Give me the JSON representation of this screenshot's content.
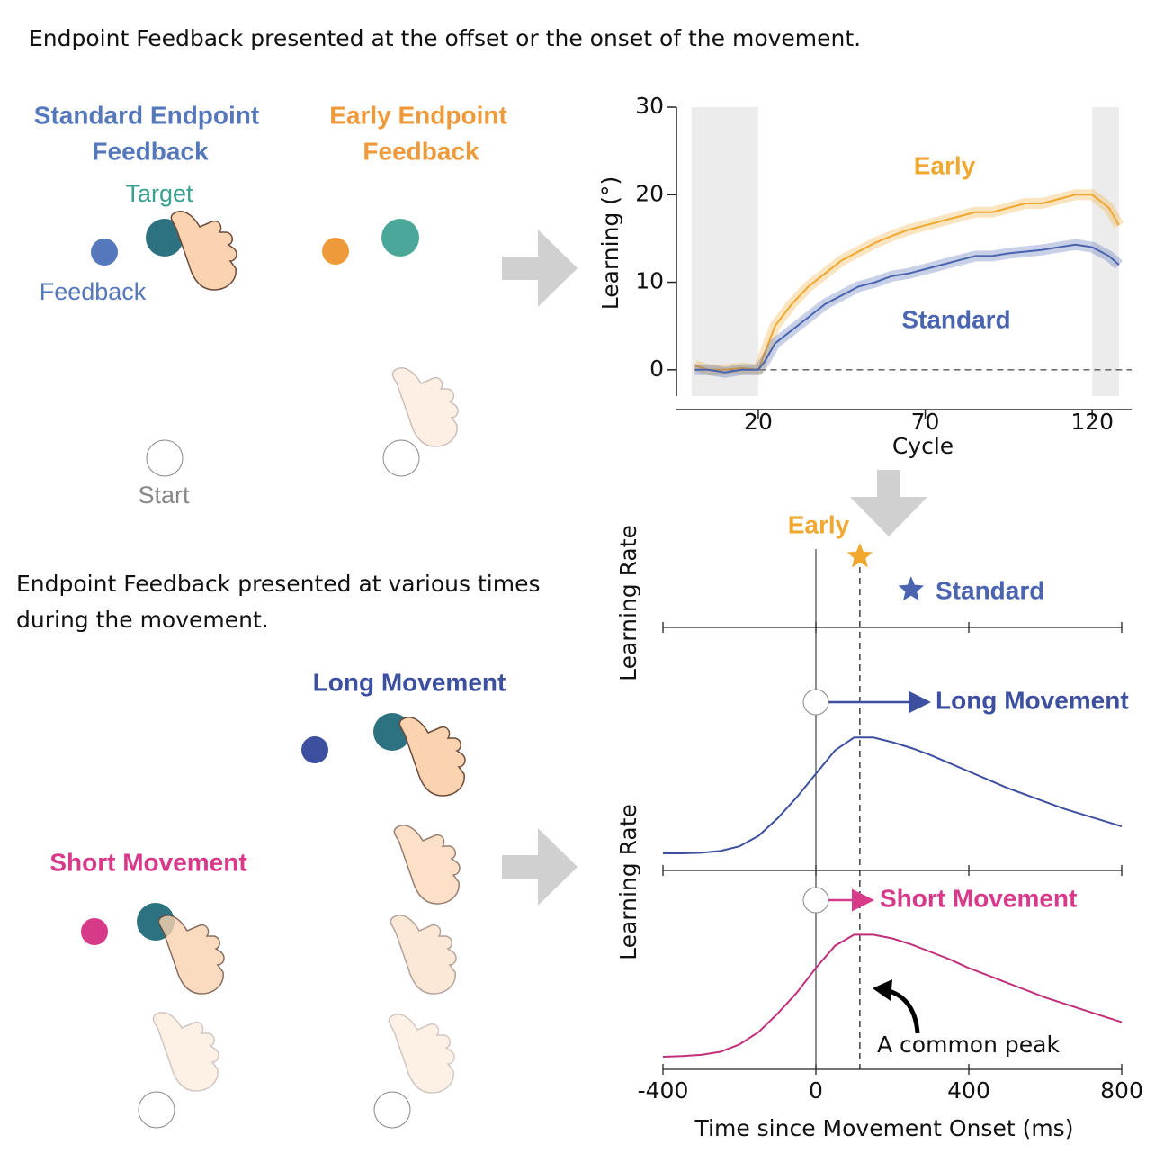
{
  "header": {
    "top_caption": "Endpoint Feedback presented at the offset or the onset of the movement.",
    "bottom_caption": [
      "Endpoint Feedback presented at various times",
      "during the movement."
    ]
  },
  "diagram": {
    "standard_title": [
      "Standard Endpoint",
      "Feedback"
    ],
    "early_title": [
      "Early Endpoint",
      "Feedback"
    ],
    "target": "Target",
    "feedback": "Feedback",
    "start": "Start",
    "long": "Long Movement",
    "short": "Short Movement"
  },
  "chart_data": [
    {
      "type": "line",
      "ylabel": "Learning (°)",
      "xlabel": "Cycle",
      "x": [
        1,
        5,
        10,
        15,
        20,
        22,
        25,
        30,
        35,
        40,
        45,
        50,
        55,
        60,
        65,
        70,
        75,
        80,
        85,
        90,
        95,
        100,
        105,
        110,
        115,
        120,
        125,
        128
      ],
      "series": [
        {
          "name": "Early",
          "color": "#f0a830",
          "values": [
            0.5,
            0,
            0,
            0.2,
            0,
            2,
            5,
            7.5,
            9.5,
            11,
            12.5,
            13.5,
            14.5,
            15.3,
            16,
            16.5,
            17,
            17.5,
            18,
            18,
            18.5,
            19,
            19,
            19.5,
            20,
            20,
            18.5,
            16.5
          ]
        },
        {
          "name": "Standard",
          "color": "#4a64b0",
          "values": [
            0,
            0,
            -0.3,
            0,
            0,
            1,
            3,
            4.5,
            6,
            7.5,
            8.5,
            9.5,
            10,
            10.7,
            11,
            11.5,
            12,
            12.5,
            13,
            13,
            13.3,
            13.5,
            13.7,
            14,
            14.3,
            14,
            13,
            12
          ]
        }
      ],
      "xlim": [
        -4.5,
        131.8
      ],
      "ylim": [
        -3,
        30
      ],
      "xticks": [
        20,
        70,
        120
      ],
      "yticks": [
        0,
        10,
        20,
        30
      ],
      "shaded_regions": [
        [
          0,
          20
        ],
        [
          120,
          128
        ]
      ],
      "reference_line": 0
    },
    {
      "type": "line",
      "xlabel": "Time since Movement Onset (ms)",
      "ylabels": [
        "Learning Rate",
        "Learning Rate"
      ],
      "x": [
        -400,
        -350,
        -300,
        -250,
        -200,
        -150,
        -100,
        -50,
        0,
        50,
        100,
        150,
        200,
        250,
        300,
        350,
        400,
        450,
        500,
        550,
        600,
        650,
        700,
        750,
        800
      ],
      "series": [
        {
          "name": "Long Movement",
          "color": "#3d4f9f",
          "values": [
            0,
            0,
            0.005,
            0.02,
            0.06,
            0.15,
            0.3,
            0.48,
            0.68,
            0.88,
            0.99,
            0.99,
            0.95,
            0.9,
            0.84,
            0.77,
            0.7,
            0.63,
            0.56,
            0.5,
            0.44,
            0.38,
            0.33,
            0.28,
            0.23
          ]
        },
        {
          "name": "Short Movement",
          "color": "#c0307a",
          "values": [
            0,
            0.005,
            0.015,
            0.04,
            0.1,
            0.2,
            0.35,
            0.52,
            0.72,
            0.9,
            0.99,
            0.99,
            0.96,
            0.91,
            0.85,
            0.79,
            0.72,
            0.66,
            0.6,
            0.54,
            0.48,
            0.43,
            0.38,
            0.33,
            0.28
          ]
        }
      ],
      "points": [
        {
          "name": "Early",
          "color": "#f0a830",
          "x": 115,
          "value": 0.62
        },
        {
          "name": "Standard",
          "color": "#4a64b0",
          "x": 249,
          "value": 0.33
        }
      ],
      "xlim": [
        -400,
        800
      ],
      "ylim": [
        0,
        1
      ],
      "xticks": [
        -400,
        0,
        400,
        800
      ],
      "annotation": {
        "text": "A common peak",
        "x": 115
      }
    }
  ]
}
